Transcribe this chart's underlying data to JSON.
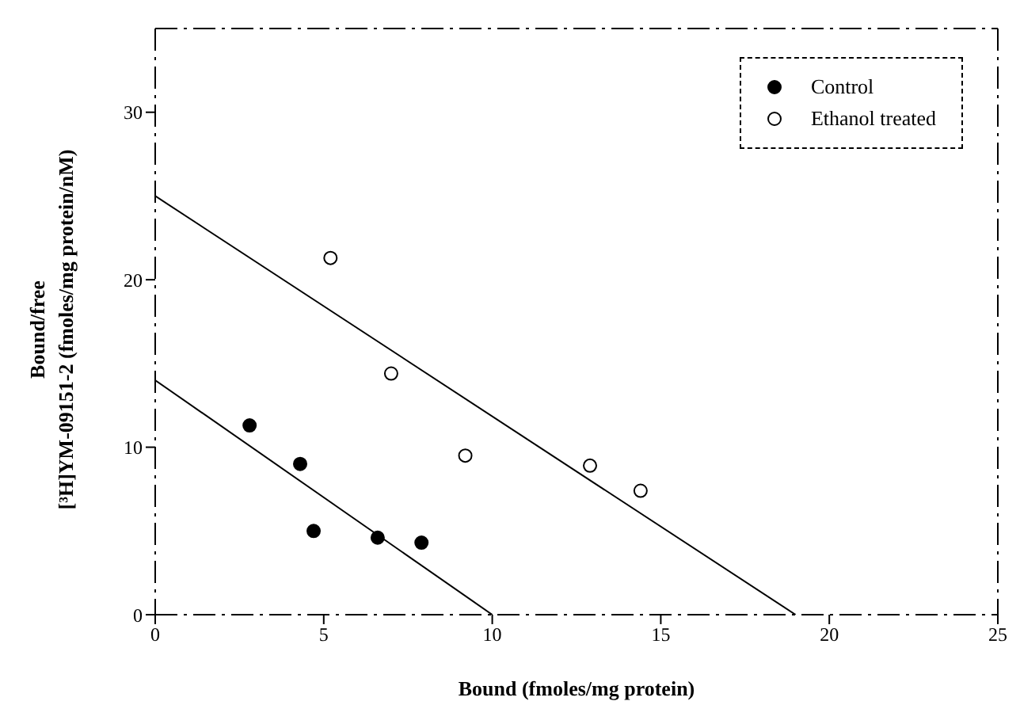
{
  "chart_data": {
    "type": "scatter",
    "xlabel": "Bound (fmoles/mg protein)",
    "ylabel": "Bound/free\n[³H]YM-09151-2 (fmoles/mg protein/nM)",
    "xlim": [
      0,
      25
    ],
    "ylim": [
      0,
      35
    ],
    "xticks": [
      0,
      5,
      10,
      15,
      20,
      25
    ],
    "yticks": [
      0,
      10,
      20,
      30
    ],
    "legend": "top right",
    "series": [
      {
        "name": "Control",
        "color": "#000000",
        "marker": "circle",
        "x": [
          2.8,
          4.3,
          4.7,
          6.6,
          7.9
        ],
        "values": [
          11.3,
          9.0,
          5.0,
          4.6,
          4.3
        ]
      },
      {
        "name": "Ethanol treated",
        "color": "#ffffff",
        "marker": "circle",
        "x": [
          5.2,
          7.0,
          9.2,
          12.9,
          14.4
        ],
        "values": [
          21.3,
          14.4,
          9.5,
          8.9,
          7.4
        ]
      },
      {
        "type": "line",
        "marker": "none",
        "color": "#000000",
        "x": [
          0,
          10
        ],
        "values": [
          14,
          0
        ]
      },
      {
        "type": "line",
        "marker": "none",
        "color": "#000000",
        "x": [
          0,
          19
        ],
        "values": [
          25,
          0
        ]
      }
    ]
  }
}
